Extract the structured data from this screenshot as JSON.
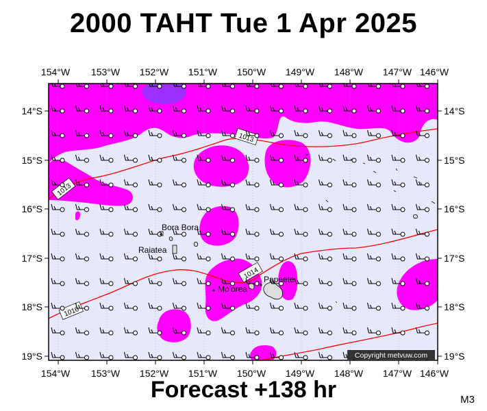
{
  "title": "2000 TAHT Tue 1 Apr 2025",
  "subtitle": "Forecast +138 hr",
  "model": "M3",
  "copyright": "Copyright metvuw.com",
  "colors": {
    "ocean": "#e8e8fc",
    "rain": "#ff00ff",
    "heavy_rain": "#9b30ff",
    "isobar": "#ff0000",
    "land": "#dddddd"
  },
  "map": {
    "lon_labels": [
      "154°W",
      "153°W",
      "152°W",
      "151°W",
      "150°W",
      "149°W",
      "148°W",
      "147°W",
      "146°W"
    ],
    "lat_labels": [
      "14°S",
      "15°S",
      "16°S",
      "17°S",
      "18°S",
      "19°S"
    ],
    "isobar_labels": [
      "1013",
      "1013",
      "1014",
      "1016"
    ],
    "places": [
      "Bora Bora",
      "Raiatea",
      "Mo'orea",
      "Papeete"
    ]
  }
}
